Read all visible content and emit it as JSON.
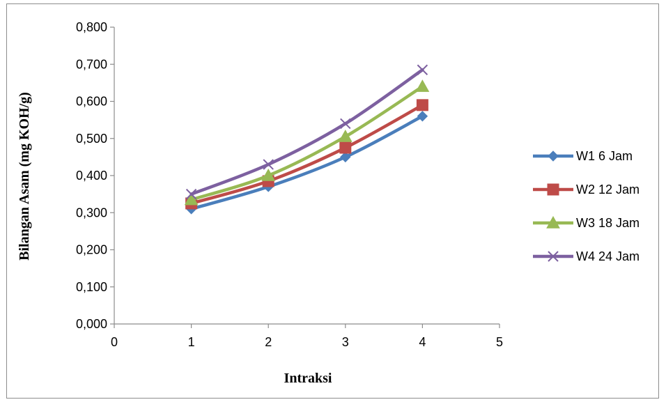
{
  "chart_data": {
    "type": "line",
    "title": "",
    "xlabel": "Intraksi",
    "ylabel": "Bilangan Asam (mg KOH/g)",
    "xlim": [
      0,
      5
    ],
    "ylim": [
      0,
      0.8
    ],
    "x_ticks": [
      "0",
      "1",
      "2",
      "3",
      "4",
      "5"
    ],
    "y_ticks": [
      "0,000",
      "0,100",
      "0,200",
      "0,300",
      "0,400",
      "0,500",
      "0,600",
      "0,700",
      "0,800"
    ],
    "x": [
      1,
      2,
      3,
      4
    ],
    "grid": false,
    "legend_position": "right",
    "series": [
      {
        "name": "W1 6 Jam",
        "values": [
          0.31,
          0.37,
          0.45,
          0.56
        ],
        "color": "#4a7ebb",
        "marker": "diamond"
      },
      {
        "name": "W2 12 Jam",
        "values": [
          0.325,
          0.385,
          0.475,
          0.59
        ],
        "color": "#be4b48",
        "marker": "square"
      },
      {
        "name": "W3 18 Jam",
        "values": [
          0.335,
          0.4,
          0.505,
          0.64
        ],
        "color": "#98b954",
        "marker": "triangle"
      },
      {
        "name": "W4 24 Jam",
        "values": [
          0.35,
          0.43,
          0.54,
          0.685
        ],
        "color": "#7d60a0",
        "marker": "x"
      }
    ]
  }
}
